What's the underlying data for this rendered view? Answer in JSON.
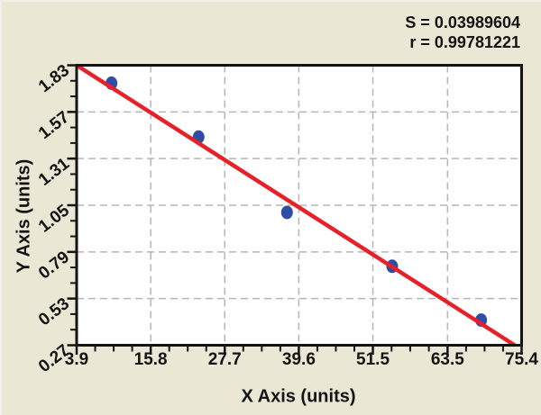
{
  "stats_box": {
    "s_line": "S = 0.03989604",
    "r_line": "r = 0.99781221"
  },
  "chart_data": {
    "type": "scatter",
    "title": "",
    "xlabel": "X Axis (units)",
    "ylabel": "Y Axis (units)",
    "xlim": [
      3.9,
      75.4
    ],
    "ylim": [
      0.27,
      1.83
    ],
    "x_tick_labels": [
      "3.9",
      "15.8",
      "27.7",
      "39.6",
      "51.5",
      "63.5",
      "75.4"
    ],
    "y_tick_labels": [
      "0.27",
      "0.53",
      "0.79",
      "1.05",
      "1.31",
      "1.57",
      "1.83"
    ],
    "x_minor_divisions": 4,
    "y_minor_divisions": 3,
    "grid": "dashed gray lines at interior major ticks, both axes",
    "legend": "none",
    "points": [
      {
        "x": 9.5,
        "y": 1.73
      },
      {
        "x": 23.5,
        "y": 1.43
      },
      {
        "x": 37.7,
        "y": 1.01
      },
      {
        "x": 54.6,
        "y": 0.71
      },
      {
        "x": 68.9,
        "y": 0.41
      }
    ],
    "fit_line": {
      "x1": 3.9,
      "y1": 1.83,
      "x2": 74.3,
      "y2": 0.27
    },
    "stats": {
      "S": "0.03989604",
      "r": "0.99781221"
    },
    "colors": {
      "background": "#eae7d5",
      "plot_background": "#ffffff",
      "frame": "#141414",
      "grid": "#b5b5b5",
      "line": "#e62129",
      "point": "#2f4da5",
      "text": "#141414"
    }
  }
}
